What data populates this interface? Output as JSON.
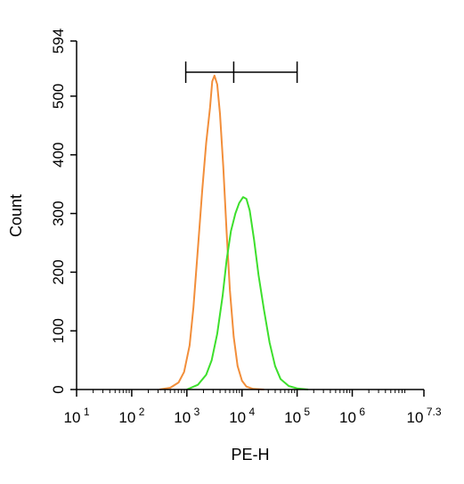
{
  "chart_data": {
    "type": "line",
    "xlabel": "PE-H",
    "ylabel": "Count",
    "x_scale": "log10",
    "xlim": [
      1,
      7.3
    ],
    "ylim": [
      0,
      594
    ],
    "y_ticks": [
      0,
      100,
      200,
      300,
      400,
      500,
      594
    ],
    "x_ticks": [
      {
        "base": "10",
        "exp": "1"
      },
      {
        "base": "10",
        "exp": "2"
      },
      {
        "base": "10",
        "exp": "3"
      },
      {
        "base": "10",
        "exp": "4"
      },
      {
        "base": "10",
        "exp": "5"
      },
      {
        "base": "10",
        "exp": "6"
      },
      {
        "base": "10",
        "exp": "7.3"
      }
    ],
    "gate": {
      "min_log": 2.98,
      "mid_log": 3.85,
      "max_log": 5.0
    },
    "series": [
      {
        "color": "#f28e3a",
        "x": [
          2.5,
          2.7,
          2.85,
          2.95,
          3.05,
          3.12,
          3.2,
          3.28,
          3.35,
          3.42,
          3.46,
          3.5,
          3.55,
          3.6,
          3.66,
          3.72,
          3.78,
          3.85,
          3.92,
          4.0,
          4.08,
          4.2,
          4.4
        ],
        "y": [
          0,
          3,
          12,
          30,
          75,
          140,
          240,
          340,
          420,
          480,
          525,
          535,
          520,
          470,
          380,
          270,
          170,
          90,
          40,
          15,
          5,
          1,
          0
        ]
      },
      {
        "color": "#3ddf2c",
        "x": [
          3.0,
          3.2,
          3.35,
          3.45,
          3.55,
          3.65,
          3.72,
          3.8,
          3.88,
          3.95,
          4.02,
          4.08,
          4.14,
          4.22,
          4.3,
          4.4,
          4.5,
          4.6,
          4.7,
          4.85,
          5.0,
          5.2
        ],
        "y": [
          0,
          8,
          25,
          50,
          95,
          160,
          220,
          270,
          300,
          318,
          328,
          325,
          305,
          255,
          195,
          135,
          80,
          40,
          18,
          6,
          2,
          0
        ]
      }
    ]
  }
}
